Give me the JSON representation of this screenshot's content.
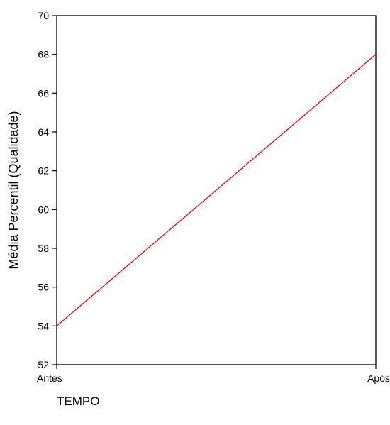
{
  "chart_data": {
    "type": "line",
    "title": "",
    "xlabel": "TEMPO",
    "ylabel": "Média Percentil (Qualidade)",
    "categories": [
      "Antes",
      "Após"
    ],
    "series": [
      {
        "values": [
          54,
          68
        ],
        "color": "#ff0000"
      }
    ],
    "ylim": [
      52,
      70
    ],
    "yticks": [
      "52",
      "54",
      "56",
      "58",
      "60",
      "62",
      "64",
      "66",
      "68",
      "70"
    ],
    "grid": false,
    "legend": "none"
  }
}
